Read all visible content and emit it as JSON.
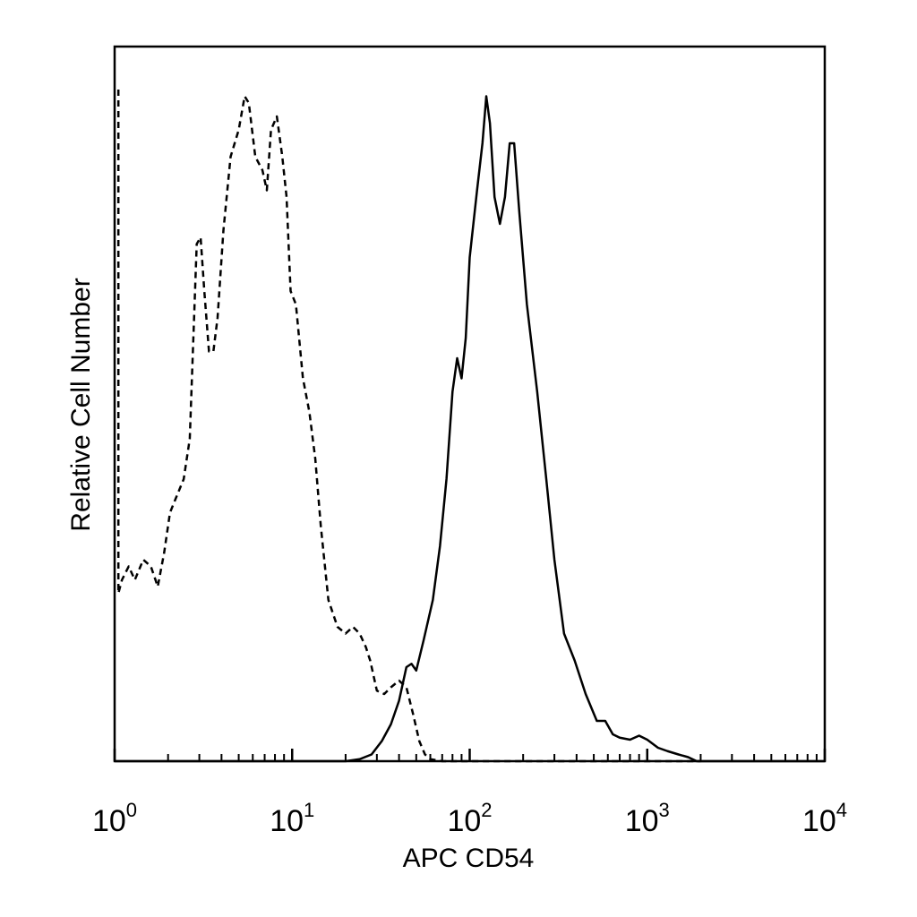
{
  "chart_data": {
    "type": "line",
    "xlabel": "APC CD54",
    "ylabel": "Relative Cell Number",
    "xscale": "log",
    "xlim": [
      1,
      10000
    ],
    "ylim": [
      0,
      100
    ],
    "grid": false,
    "x_ticks": [
      {
        "base": "10",
        "exp": "0",
        "value": 1
      },
      {
        "base": "10",
        "exp": "1",
        "value": 10
      },
      {
        "base": "10",
        "exp": "2",
        "value": 100
      },
      {
        "base": "10",
        "exp": "3",
        "value": 1000
      },
      {
        "base": "10",
        "exp": "4",
        "value": 10000
      }
    ],
    "series": [
      {
        "style": "dashed",
        "color": "#000000",
        "points": [
          [
            1.05,
            100
          ],
          [
            1.05,
            25
          ],
          [
            1.1,
            27
          ],
          [
            1.2,
            29
          ],
          [
            1.3,
            27
          ],
          [
            1.45,
            30
          ],
          [
            1.6,
            29
          ],
          [
            1.75,
            26
          ],
          [
            1.9,
            31
          ],
          [
            2.05,
            37
          ],
          [
            2.2,
            39
          ],
          [
            2.45,
            42
          ],
          [
            2.65,
            48
          ],
          [
            2.9,
            77
          ],
          [
            3.05,
            78
          ],
          [
            3.2,
            70
          ],
          [
            3.4,
            61
          ],
          [
            3.6,
            61
          ],
          [
            3.8,
            66
          ],
          [
            4.1,
            79
          ],
          [
            4.5,
            90
          ],
          [
            5.0,
            94
          ],
          [
            5.4,
            99
          ],
          [
            5.7,
            98
          ],
          [
            6.2,
            90
          ],
          [
            6.8,
            88
          ],
          [
            7.2,
            85
          ],
          [
            7.6,
            94
          ],
          [
            8.2,
            96
          ],
          [
            8.8,
            90
          ],
          [
            9.3,
            84
          ],
          [
            9.8,
            70
          ],
          [
            10.5,
            68
          ],
          [
            11.5,
            57
          ],
          [
            12.5,
            52
          ],
          [
            13.5,
            45
          ],
          [
            14.5,
            35
          ],
          [
            16,
            24
          ],
          [
            18,
            20
          ],
          [
            20,
            19
          ],
          [
            22,
            20
          ],
          [
            24,
            19
          ],
          [
            26,
            17
          ],
          [
            27.5,
            15
          ],
          [
            30,
            10.5
          ],
          [
            33,
            10
          ],
          [
            36,
            11
          ],
          [
            40,
            12
          ],
          [
            44,
            11
          ],
          [
            48,
            7
          ],
          [
            52,
            3
          ],
          [
            56,
            1
          ],
          [
            60,
            0.3
          ],
          [
            70,
            0
          ],
          [
            2000,
            0
          ]
        ]
      },
      {
        "style": "solid",
        "color": "#000000",
        "points": [
          [
            1,
            0
          ],
          [
            20,
            0
          ],
          [
            24,
            0.3
          ],
          [
            28,
            1
          ],
          [
            32,
            3
          ],
          [
            36,
            5.5
          ],
          [
            40,
            9
          ],
          [
            44,
            14
          ],
          [
            47,
            14.5
          ],
          [
            50,
            13.5
          ],
          [
            55,
            18
          ],
          [
            62,
            24
          ],
          [
            68,
            32
          ],
          [
            74,
            42
          ],
          [
            80,
            55
          ],
          [
            85,
            60
          ],
          [
            90,
            57
          ],
          [
            95,
            63
          ],
          [
            100,
            75
          ],
          [
            110,
            85
          ],
          [
            118,
            92
          ],
          [
            124,
            99
          ],
          [
            130,
            95
          ],
          [
            138,
            84
          ],
          [
            148,
            80
          ],
          [
            158,
            84
          ],
          [
            168,
            92
          ],
          [
            178,
            92
          ],
          [
            190,
            82
          ],
          [
            210,
            68
          ],
          [
            240,
            55
          ],
          [
            270,
            42
          ],
          [
            300,
            30
          ],
          [
            340,
            19
          ],
          [
            390,
            15
          ],
          [
            450,
            10
          ],
          [
            520,
            6
          ],
          [
            580,
            6
          ],
          [
            640,
            4
          ],
          [
            700,
            3.5
          ],
          [
            800,
            3.2
          ],
          [
            900,
            3.8
          ],
          [
            1000,
            3.2
          ],
          [
            1150,
            2
          ],
          [
            1300,
            1.5
          ],
          [
            1500,
            1
          ],
          [
            1700,
            0.6
          ],
          [
            1900,
            0
          ],
          [
            10000,
            0
          ]
        ]
      }
    ]
  }
}
